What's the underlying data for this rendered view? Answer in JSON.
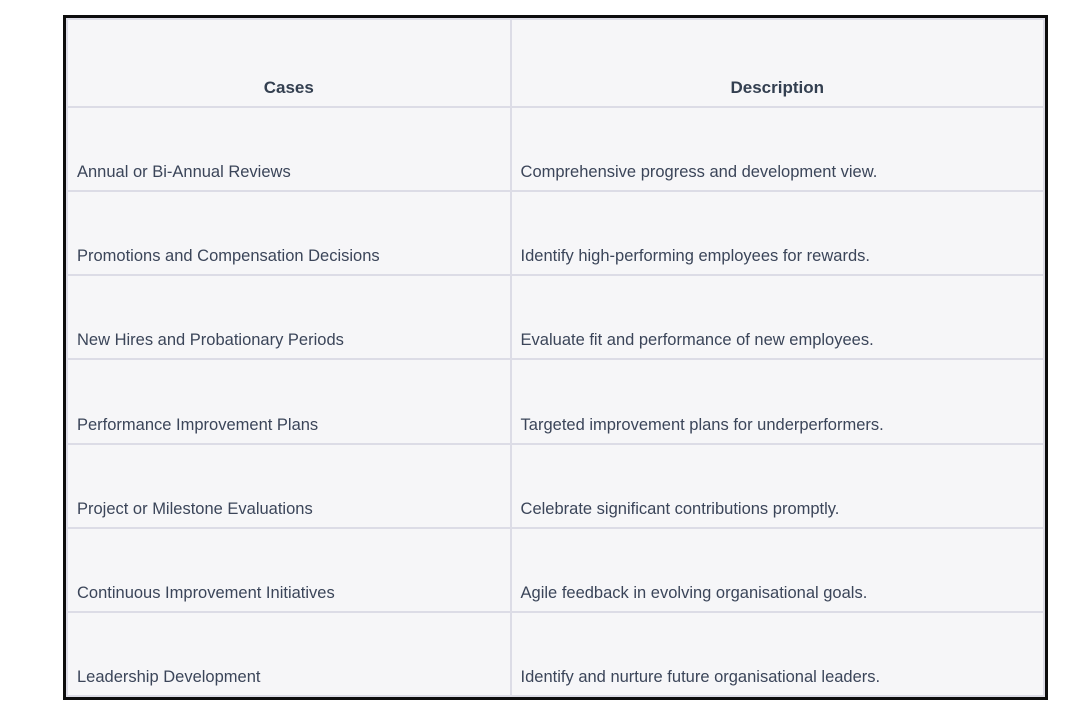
{
  "table": {
    "headers": {
      "cases": "Cases",
      "description": "Description"
    },
    "rows": [
      {
        "case": "Annual or Bi-Annual Reviews",
        "description": "Comprehensive progress and development view."
      },
      {
        "case": "Promotions and Compensation Decisions",
        "description": "Identify high-performing employees for rewards."
      },
      {
        "case": "New Hires and Probationary Periods",
        "description": "Evaluate fit and performance of new employees."
      },
      {
        "case": "Performance Improvement Plans",
        "description": "Targeted improvement plans for underperformers."
      },
      {
        "case": "Project or Milestone Evaluations",
        "description": "Celebrate significant contributions promptly."
      },
      {
        "case": "Continuous Improvement Initiatives",
        "description": "Agile feedback in evolving organisational goals."
      },
      {
        "case": "Leadership Development",
        "description": "Identify and nurture future organisational leaders."
      }
    ],
    "colors": {
      "border_outer": "#0d0d0d",
      "border_inner": "#dcdce6",
      "cell_background": "#f6f6f8",
      "header_text": "#333f50",
      "body_text": "#3b4559"
    }
  }
}
